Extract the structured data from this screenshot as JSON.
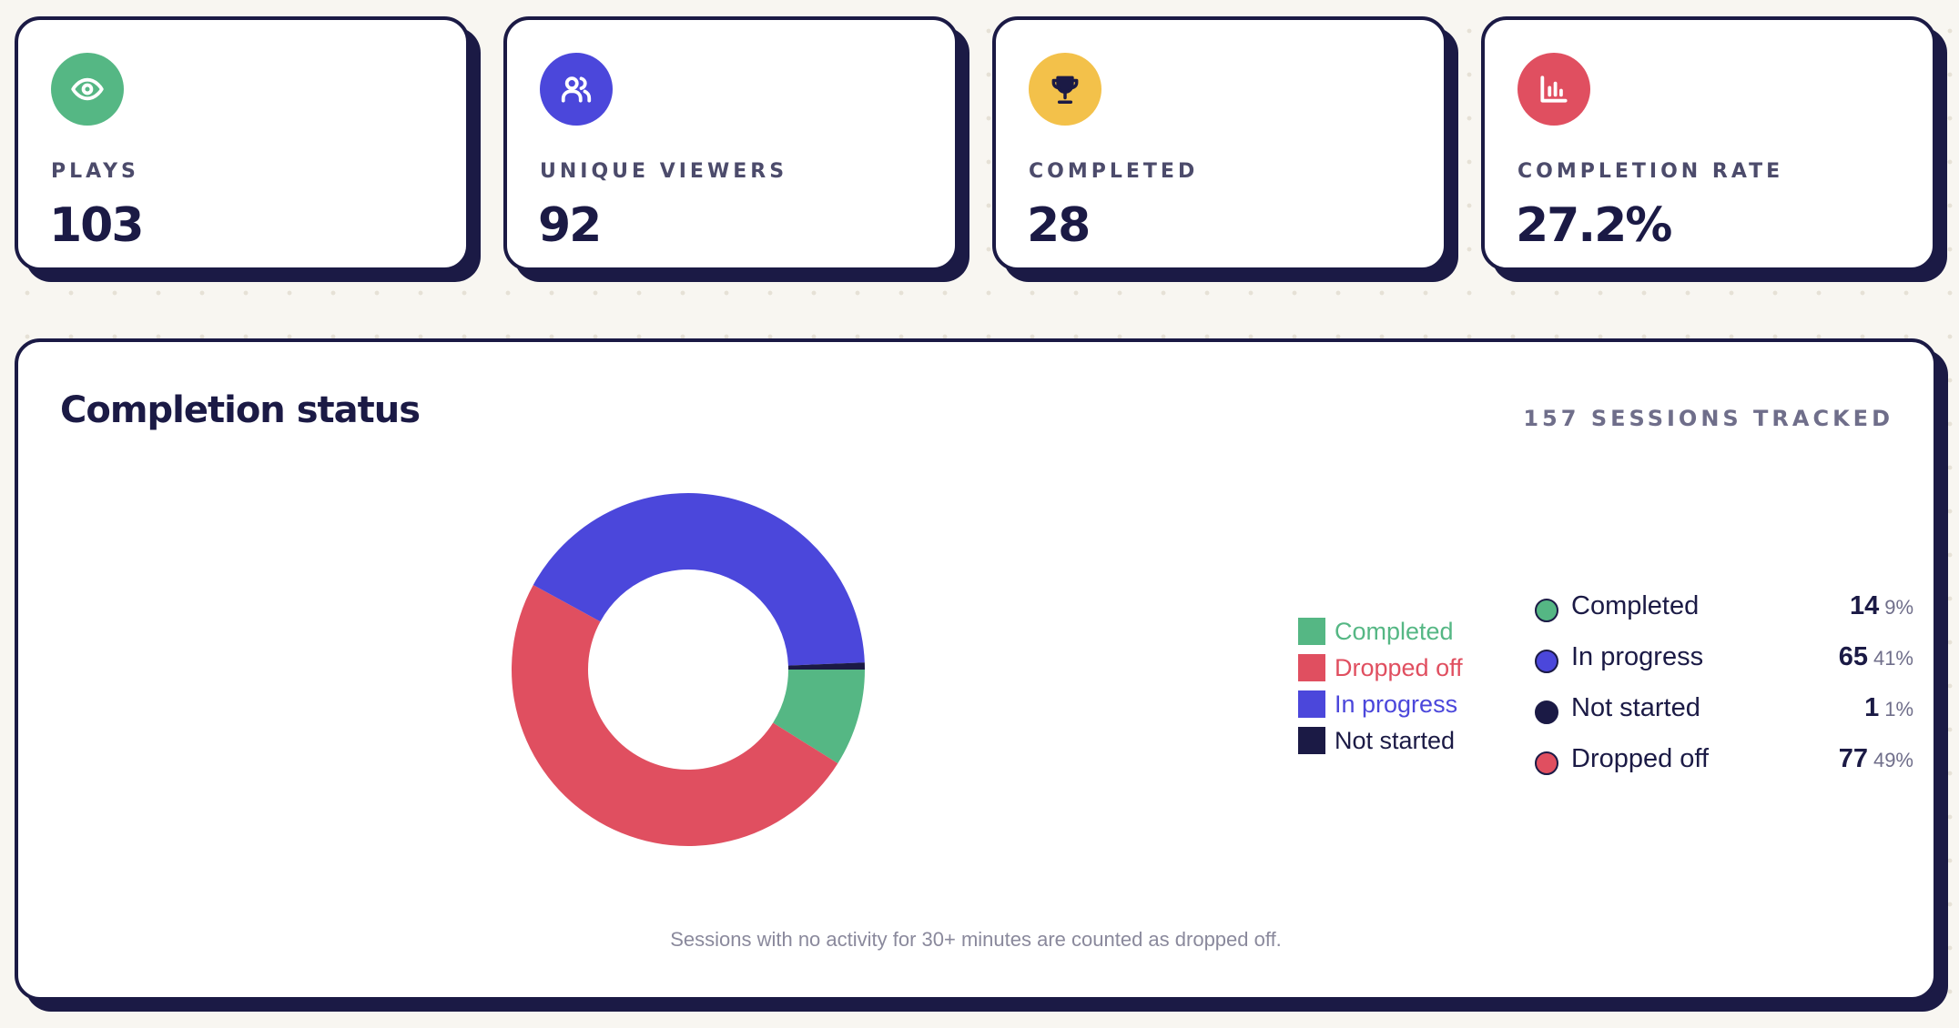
{
  "stats": [
    {
      "label": "PLAYS",
      "value": "103",
      "icon": "eye-icon",
      "color": "#55b784"
    },
    {
      "label": "UNIQUE VIEWERS",
      "value": "92",
      "icon": "users-icon",
      "color": "#4b47db"
    },
    {
      "label": "COMPLETED",
      "value": "28",
      "icon": "trophy-icon",
      "color": "#f3c14a"
    },
    {
      "label": "COMPLETION RATE",
      "value": "27.2%",
      "icon": "bar-chart-icon",
      "color": "#e04f60"
    }
  ],
  "completion": {
    "title": "Completion status",
    "sessions_tracked": "157 SESSIONS TRACKED",
    "footnote": "Sessions with no activity for 30+ minutes are counted as dropped off.",
    "statuses": [
      {
        "name": "Completed",
        "count": "14",
        "pct": "9%",
        "color": "#55b784"
      },
      {
        "name": "In progress",
        "count": "65",
        "pct": "41%",
        "color": "#4b47db"
      },
      {
        "name": "Not started",
        "count": "1",
        "pct": "1%",
        "color": "#1b1a45"
      },
      {
        "name": "Dropped off",
        "count": "77",
        "pct": "49%",
        "color": "#e04f60"
      }
    ]
  },
  "chart_data": {
    "type": "pie",
    "title": "",
    "categories": [
      "Completed",
      "Dropped off",
      "In progress",
      "Not started"
    ],
    "values": [
      14,
      77,
      65,
      1
    ],
    "colors": [
      "#55b784",
      "#e04f60",
      "#4b47db",
      "#1b1a45"
    ],
    "donut": true,
    "legend_position": "right"
  }
}
